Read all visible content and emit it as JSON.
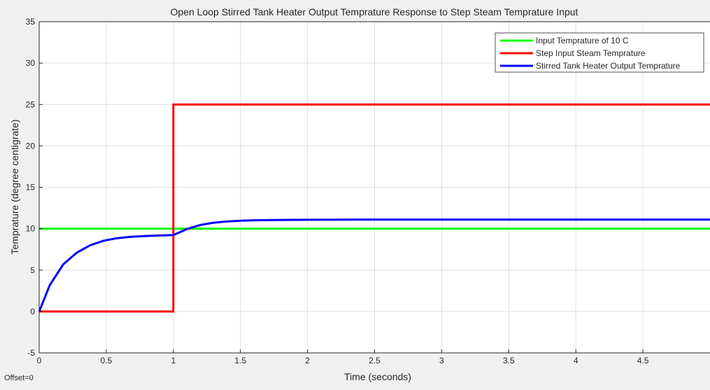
{
  "chart_data": {
    "type": "line",
    "title": "Open Loop Stirred Tank Heater Output Temprature Response to Step Steam Temprature Input",
    "xlabel": "Time (seconds)",
    "ylabel": "Temprature (degree centigrate)",
    "xlim": [
      0,
      5
    ],
    "ylim": [
      -5,
      35
    ],
    "xticks": [
      0,
      0.5,
      1,
      1.5,
      2,
      2.5,
      3,
      3.5,
      4,
      4.5
    ],
    "xtick_labels": [
      "0",
      "0.5",
      "1",
      "1.5",
      "2",
      "2.5",
      "3",
      "3.5",
      "4",
      "4.5"
    ],
    "yticks": [
      -5,
      0,
      5,
      10,
      15,
      20,
      25,
      30,
      35
    ],
    "ytick_labels": [
      "-5",
      "0",
      "5",
      "10",
      "15",
      "20",
      "25",
      "30",
      "35"
    ],
    "grid": true,
    "legend_position": "top-right",
    "series": [
      {
        "name": "Input Temprature of 10 C",
        "color": "#00ff00",
        "x": [
          0,
          5
        ],
        "y": [
          10,
          10
        ]
      },
      {
        "name": "Step Input Steam Temprature",
        "color": "#ff0000",
        "x": [
          0,
          1,
          1,
          5
        ],
        "y": [
          0,
          0,
          25,
          25
        ]
      },
      {
        "name": "Stirred Tank Heater Output Temprature",
        "color": "#0000ff",
        "x": [
          0,
          0.08,
          0.18,
          0.28,
          0.38,
          0.48,
          0.58,
          0.68,
          0.8,
          0.9,
          1.0,
          1.1,
          1.2,
          1.3,
          1.4,
          1.5,
          1.6,
          1.8,
          2.0,
          2.5,
          3,
          4,
          5
        ],
        "y": [
          0,
          3.2,
          5.7,
          7.1,
          8.0,
          8.55,
          8.85,
          9.02,
          9.12,
          9.18,
          9.22,
          9.95,
          10.45,
          10.72,
          10.88,
          10.97,
          11.02,
          11.06,
          11.08,
          11.1,
          11.1,
          11.1,
          11.1
        ]
      }
    ]
  },
  "footer": {
    "offset_text": "Offset=0"
  }
}
